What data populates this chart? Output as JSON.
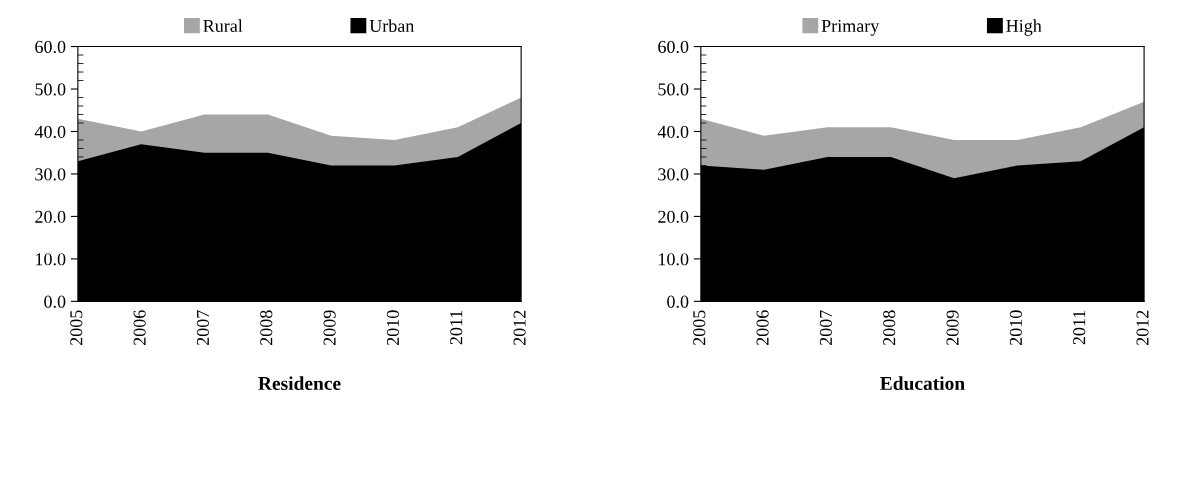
{
  "chart_data": [
    {
      "type": "area",
      "xlabel": "Residence",
      "categories": [
        "2005",
        "2006",
        "2007",
        "2008",
        "2009",
        "2010",
        "2011",
        "2012"
      ],
      "series": [
        {
          "name": "Rural",
          "color": "#a6a6a6",
          "values": [
            43,
            40,
            44,
            44,
            39,
            38,
            41,
            48
          ]
        },
        {
          "name": "Urban",
          "color": "#000000",
          "values": [
            33,
            37,
            35,
            35,
            32,
            32,
            34,
            42
          ]
        }
      ],
      "ylim": [
        0,
        60
      ],
      "yticks": [
        {
          "value": 0,
          "label": "0.0"
        },
        {
          "value": 10,
          "label": "10.0"
        },
        {
          "value": 20,
          "label": "20.0"
        },
        {
          "value": 30,
          "label": "30.0"
        },
        {
          "value": 40,
          "label": "40.0"
        },
        {
          "value": 50,
          "label": "50.0"
        },
        {
          "value": 60,
          "label": "60.0"
        }
      ],
      "grid": false,
      "legend": "top"
    },
    {
      "type": "area",
      "xlabel": "Education",
      "categories": [
        "2005",
        "2006",
        "2007",
        "2008",
        "2009",
        "2010",
        "2011",
        "2012"
      ],
      "series": [
        {
          "name": "Primary",
          "color": "#a6a6a6",
          "values": [
            43,
            39,
            41,
            41,
            38,
            38,
            41,
            47
          ]
        },
        {
          "name": "High",
          "color": "#000000",
          "values": [
            32,
            31,
            34,
            34,
            29,
            32,
            33,
            41
          ]
        }
      ],
      "ylim": [
        0,
        60
      ],
      "yticks": [
        {
          "value": 0,
          "label": "0.0"
        },
        {
          "value": 10,
          "label": "10.0"
        },
        {
          "value": 20,
          "label": "20.0"
        },
        {
          "value": 30,
          "label": "30.0"
        },
        {
          "value": 40,
          "label": "40.0"
        },
        {
          "value": 50,
          "label": "50.0"
        },
        {
          "value": 60,
          "label": "60.0"
        }
      ],
      "grid": false,
      "legend": "top"
    }
  ]
}
